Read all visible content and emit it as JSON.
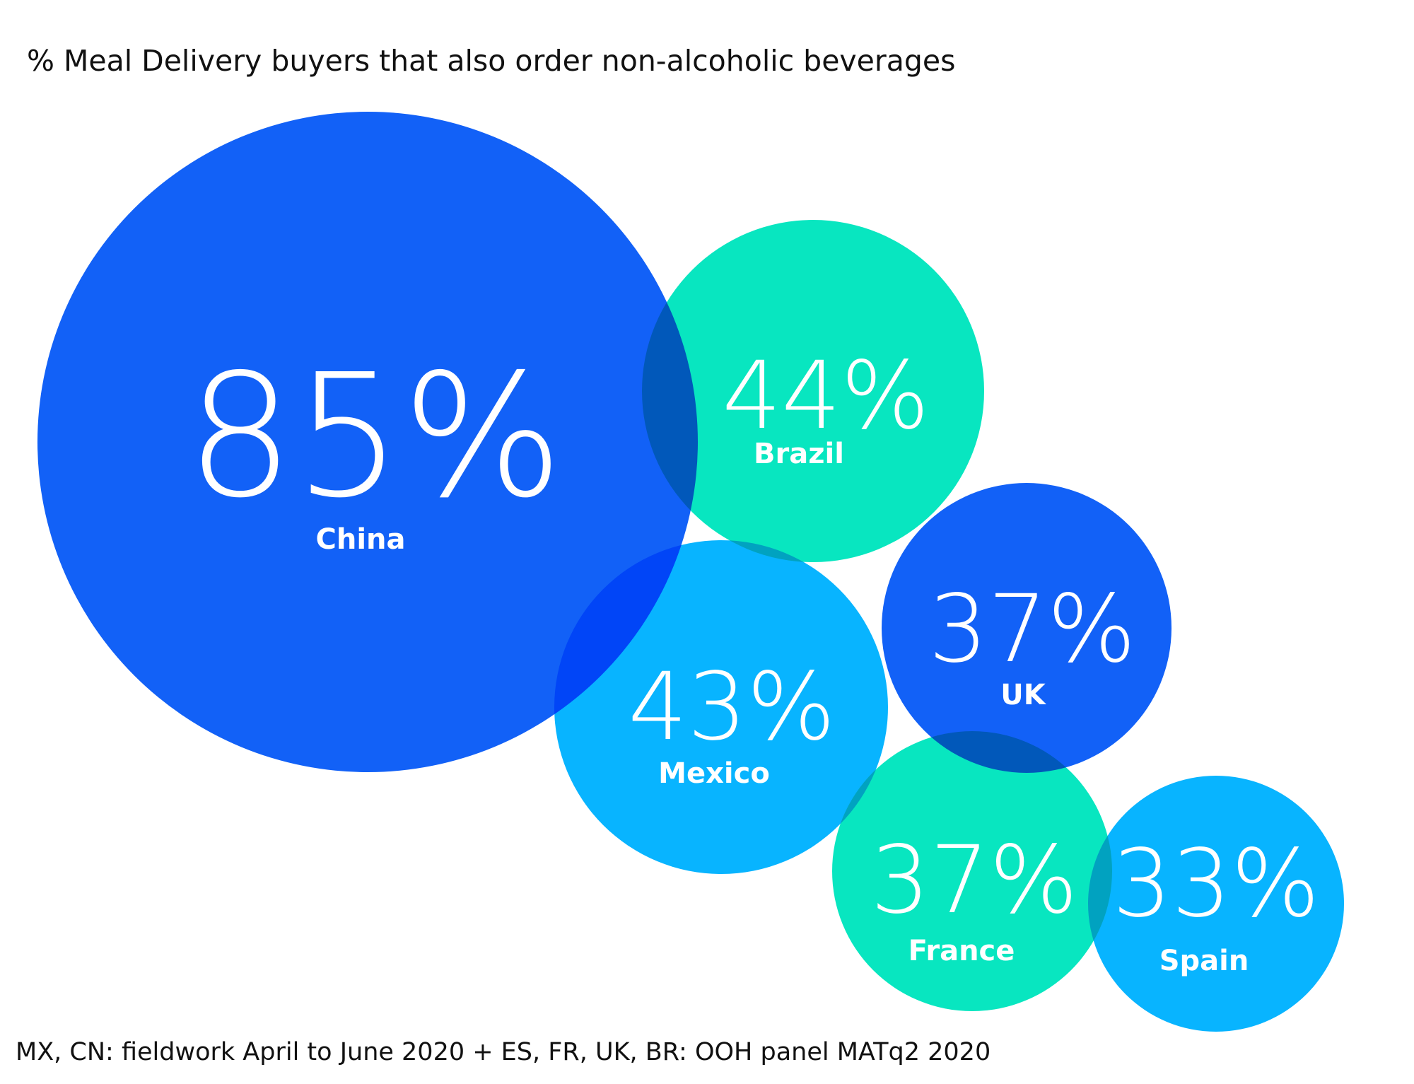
{
  "title": "% Meal Delivery buyers that also order non-alcoholic beverages",
  "footnote": "MX, CN: fieldwork April to June 2020 + ES, FR, UK, BR: OOH panel MATq2 2020",
  "colors": {
    "dark_blue": "#0A5CF7",
    "light_blue": "#00B2FF",
    "teal": "#00E5BE"
  },
  "chart_data": {
    "type": "bubble",
    "title": "% Meal Delivery buyers that also order non-alcoholic beverages",
    "unit": "%",
    "series": [
      {
        "country": "China",
        "value": 85,
        "label": "85%",
        "color": "#0A5CF7"
      },
      {
        "country": "Brazil",
        "value": 44,
        "label": "44%",
        "color": "#00E5BE"
      },
      {
        "country": "Mexico",
        "value": 43,
        "label": "43%",
        "color": "#00B2FF"
      },
      {
        "country": "UK",
        "value": 37,
        "label": "37%",
        "color": "#0A5CF7"
      },
      {
        "country": "France",
        "value": 37,
        "label": "37%",
        "color": "#00E5BE"
      },
      {
        "country": "Spain",
        "value": 33,
        "label": "33%",
        "color": "#00B2FF"
      }
    ]
  }
}
